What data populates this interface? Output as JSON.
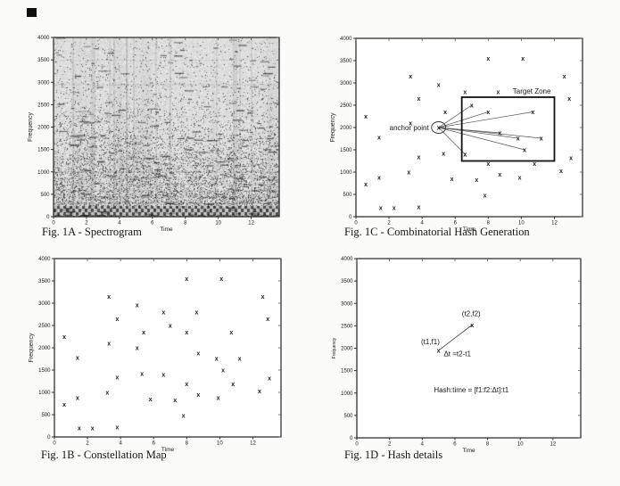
{
  "chart_data": [
    {
      "id": "fig1a",
      "type": "heatmap",
      "title": "Fig. 1A - Spectrogram",
      "xlabel": "Time",
      "ylabel": "Frequency",
      "xlim": [
        0,
        13.7
      ],
      "ylim": [
        0,
        4000
      ],
      "xticks": [
        0,
        2,
        4,
        6,
        8,
        10,
        12
      ],
      "yticks": [
        0,
        500,
        1000,
        1500,
        2000,
        2500,
        3000,
        3500,
        4000
      ],
      "description": "Grayscale audio spectrogram: speckled noise over the full time-frequency plane, energy densest at low frequencies with dark horizontal harmonic bands below ~1500 Hz, a near-black banded strip along the bottom, and faint vertical note-onset striations."
    },
    {
      "id": "fig1c",
      "type": "scatter",
      "title": "Fig. 1C - Combinatorial Hash Generation",
      "xlabel": "Time",
      "ylabel": "Frequency",
      "xlim": [
        0,
        13.7
      ],
      "ylim": [
        0,
        4000
      ],
      "xticks": [
        0,
        2,
        4,
        6,
        8,
        10,
        12
      ],
      "yticks": [
        0,
        500,
        1000,
        1500,
        2000,
        2500,
        3000,
        3500,
        4000
      ],
      "marker": "x",
      "points": [
        [
          0.6,
          2250
        ],
        [
          0.6,
          730
        ],
        [
          1.4,
          1780
        ],
        [
          1.4,
          880
        ],
        [
          1.5,
          200
        ],
        [
          2.3,
          200
        ],
        [
          3.2,
          1000
        ],
        [
          3.3,
          3150
        ],
        [
          3.3,
          2100
        ],
        [
          3.8,
          2650
        ],
        [
          3.8,
          1340
        ],
        [
          3.8,
          220
        ],
        [
          5.0,
          2960
        ],
        [
          5.0,
          2000
        ],
        [
          5.3,
          1420
        ],
        [
          5.4,
          2350
        ],
        [
          5.8,
          850
        ],
        [
          6.6,
          2800
        ],
        [
          6.6,
          1400
        ],
        [
          7.0,
          2500
        ],
        [
          7.3,
          830
        ],
        [
          7.8,
          480
        ],
        [
          8.0,
          3550
        ],
        [
          8.0,
          2350
        ],
        [
          8.0,
          1190
        ],
        [
          8.6,
          2800
        ],
        [
          8.7,
          1880
        ],
        [
          8.7,
          950
        ],
        [
          9.8,
          1760
        ],
        [
          9.9,
          880
        ],
        [
          10.1,
          3550
        ],
        [
          10.2,
          1500
        ],
        [
          10.7,
          2350
        ],
        [
          10.8,
          1190
        ],
        [
          11.2,
          1760
        ],
        [
          12.4,
          1030
        ],
        [
          12.6,
          3150
        ],
        [
          12.9,
          2650
        ],
        [
          13.0,
          1320
        ]
      ],
      "anchor": {
        "t": 5.0,
        "f": 2000,
        "label": "anchor point"
      },
      "target_zone": {
        "t0": 6.4,
        "f0": 1250,
        "t1": 12.0,
        "f1": 2680,
        "label": "Target Zone"
      },
      "pair_lines": [
        [
          7.0,
          2500
        ],
        [
          8.0,
          2350
        ],
        [
          10.7,
          2350
        ],
        [
          8.7,
          1880
        ],
        [
          9.8,
          1760
        ],
        [
          11.2,
          1760
        ],
        [
          10.2,
          1500
        ],
        [
          6.6,
          1400
        ]
      ]
    },
    {
      "id": "fig1b",
      "type": "scatter",
      "title": "Fig. 1B - Constellation Map",
      "xlabel": "Time",
      "ylabel": "Frequency",
      "xlim": [
        0,
        13.7
      ],
      "ylim": [
        0,
        4000
      ],
      "xticks": [
        0,
        2,
        4,
        6,
        8,
        10,
        12
      ],
      "yticks": [
        0,
        500,
        1000,
        1500,
        2000,
        2500,
        3000,
        3500,
        4000
      ],
      "marker": "x",
      "points": [
        [
          0.6,
          2250
        ],
        [
          0.6,
          730
        ],
        [
          1.4,
          1780
        ],
        [
          1.4,
          880
        ],
        [
          1.5,
          200
        ],
        [
          2.3,
          200
        ],
        [
          3.2,
          1000
        ],
        [
          3.3,
          3150
        ],
        [
          3.3,
          2100
        ],
        [
          3.8,
          2650
        ],
        [
          3.8,
          1340
        ],
        [
          3.8,
          220
        ],
        [
          5.0,
          2960
        ],
        [
          5.0,
          2000
        ],
        [
          5.3,
          1420
        ],
        [
          5.4,
          2350
        ],
        [
          5.8,
          850
        ],
        [
          6.6,
          2800
        ],
        [
          6.6,
          1400
        ],
        [
          7.0,
          2500
        ],
        [
          7.3,
          830
        ],
        [
          7.8,
          480
        ],
        [
          8.0,
          3550
        ],
        [
          8.0,
          2350
        ],
        [
          8.0,
          1190
        ],
        [
          8.6,
          2800
        ],
        [
          8.7,
          1880
        ],
        [
          8.7,
          950
        ],
        [
          9.8,
          1760
        ],
        [
          9.9,
          880
        ],
        [
          10.1,
          3550
        ],
        [
          10.2,
          1500
        ],
        [
          10.7,
          2350
        ],
        [
          10.8,
          1190
        ],
        [
          11.2,
          1760
        ],
        [
          12.4,
          1030
        ],
        [
          12.6,
          3150
        ],
        [
          12.9,
          2650
        ],
        [
          13.0,
          1320
        ]
      ]
    },
    {
      "id": "fig1d",
      "type": "scatter",
      "title": "Fig. 1D - Hash details",
      "xlabel": "Time",
      "ylabel": "Frequency",
      "xlim": [
        0,
        13.7
      ],
      "ylim": [
        0,
        4000
      ],
      "xticks": [
        0,
        2,
        4,
        6,
        8,
        10,
        12
      ],
      "yticks": [
        0,
        500,
        1000,
        1500,
        2000,
        2500,
        3000,
        3500,
        4000
      ],
      "marker": "x",
      "points": [
        [
          5.0,
          1950
        ],
        [
          7.05,
          2520
        ]
      ],
      "segment": [
        [
          5.0,
          1950
        ],
        [
          7.05,
          2520
        ]
      ],
      "point_labels": [
        {
          "t": 4.5,
          "f": 2090,
          "text": "(t1,f1)"
        },
        {
          "t": 7.0,
          "f": 2720,
          "text": "(t2,f2)"
        }
      ],
      "annotations": [
        {
          "t": 6.15,
          "f": 1820,
          "text": "Δt =t2-t1"
        },
        {
          "t": 7.0,
          "f": 1015,
          "text": "Hash:time = [f1:f2:Δt]:t1"
        }
      ]
    }
  ]
}
